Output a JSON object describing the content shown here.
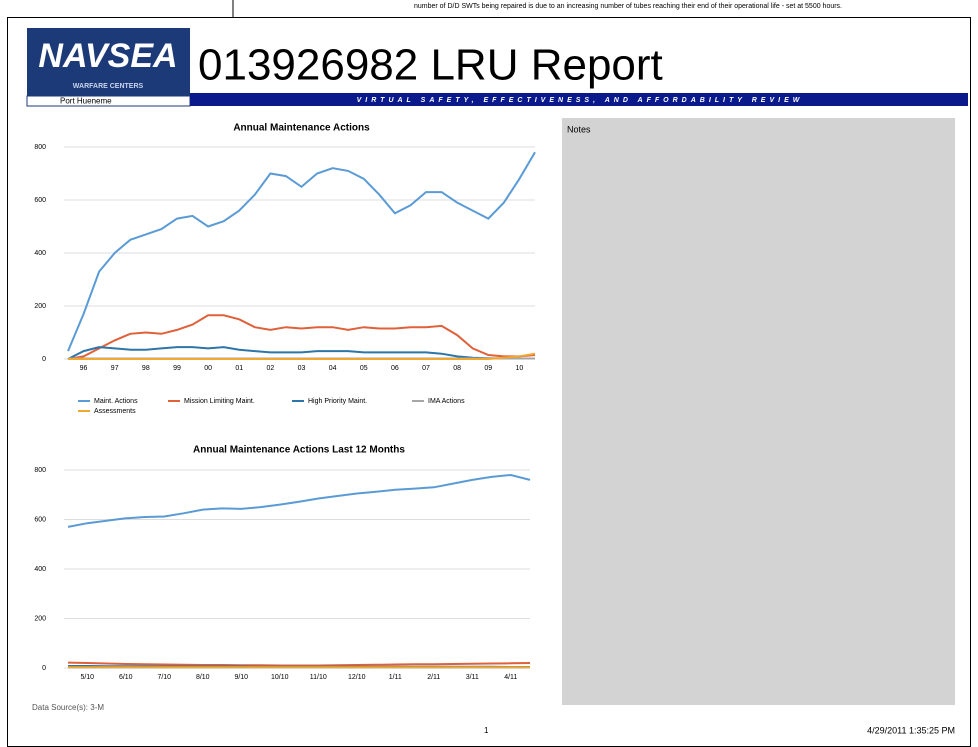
{
  "header": {
    "top_note": "number of D/D SWTs being repaired is due to an increasing number of tubes reaching their end of their operational life - set at 5500 hours.",
    "logo": "NAVSEA",
    "logo_sub": "WARFARE CENTERS",
    "location": "Port Hueneme",
    "title": "013926982 LRU Report",
    "banner": "VIRTUAL SAFETY, EFFECTIVENESS, AND AFFORDABILITY REVIEW"
  },
  "chart_data": [
    {
      "type": "line",
      "title": "Annual Maintenance Actions",
      "categories": [
        null,
        "96",
        null,
        "97",
        null,
        "98",
        null,
        "99",
        null,
        "00",
        null,
        "01",
        null,
        "02",
        null,
        "03",
        null,
        "04",
        null,
        "05",
        null,
        "06",
        null,
        "07",
        null,
        "08",
        null,
        "09",
        null,
        "10",
        null
      ],
      "series": [
        {
          "name": "Maint. Actions",
          "color": "#5b9bd5",
          "values": [
            30,
            170,
            330,
            400,
            450,
            470,
            490,
            530,
            540,
            500,
            520,
            560,
            620,
            700,
            690,
            650,
            700,
            720,
            710,
            680,
            620,
            550,
            580,
            630,
            630,
            590,
            560,
            530,
            590,
            680,
            780
          ]
        },
        {
          "name": "Mission Limiting Maint.",
          "color": "#e0603a",
          "values": [
            0,
            10,
            40,
            70,
            95,
            100,
            95,
            110,
            130,
            165,
            165,
            150,
            120,
            110,
            120,
            115,
            120,
            120,
            110,
            120,
            115,
            115,
            120,
            120,
            125,
            90,
            40,
            15,
            10,
            10,
            15
          ]
        },
        {
          "name": "High Priority Maint.",
          "color": "#2e75a8",
          "values": [
            0,
            30,
            45,
            40,
            35,
            35,
            40,
            45,
            45,
            40,
            45,
            35,
            30,
            25,
            25,
            25,
            30,
            30,
            30,
            25,
            25,
            25,
            25,
            25,
            20,
            10,
            5,
            3,
            2,
            2,
            2
          ]
        },
        {
          "name": "IMA Actions",
          "color": "#a6a6a6",
          "values": [
            2,
            2,
            2,
            2,
            2,
            2,
            2,
            2,
            2,
            2,
            2,
            2,
            2,
            2,
            2,
            2,
            2,
            2,
            2,
            2,
            2,
            2,
            2,
            2,
            2,
            2,
            2,
            2,
            2,
            2,
            2
          ]
        },
        {
          "name": "Assessments",
          "color": "#f0a830",
          "values": [
            0,
            0,
            0,
            0,
            0,
            0,
            0,
            0,
            0,
            0,
            0,
            0,
            0,
            0,
            0,
            0,
            0,
            0,
            0,
            0,
            0,
            0,
            0,
            0,
            0,
            0,
            0,
            0,
            5,
            10,
            20
          ]
        }
      ],
      "ylim": [
        0,
        800
      ],
      "yticks": [
        0,
        200,
        400,
        600,
        800
      ],
      "grid": true,
      "legend": "bottom"
    },
    {
      "type": "line",
      "title": "Annual Maintenance Actions Last 12 Months",
      "categories": [
        null,
        "5/10",
        null,
        "6/10",
        null,
        "7/10",
        null,
        "8/10",
        null,
        "9/10",
        null,
        "10/10",
        null,
        "11/10",
        null,
        "12/10",
        null,
        "1/11",
        null,
        "2/11",
        null,
        "3/11",
        null,
        "4/11",
        null
      ],
      "series": [
        {
          "color": "#5b9bd5",
          "values": [
            570,
            585,
            595,
            605,
            610,
            612,
            625,
            640,
            645,
            643,
            650,
            660,
            672,
            685,
            695,
            705,
            712,
            720,
            725,
            730,
            745,
            760,
            772,
            780,
            760
          ]
        },
        {
          "color": "#e0603a",
          "values": [
            22,
            20,
            18,
            16,
            15,
            14,
            13,
            12,
            12,
            11,
            11,
            10,
            10,
            10,
            11,
            12,
            13,
            14,
            15,
            15,
            16,
            17,
            18,
            19,
            20
          ]
        },
        {
          "color": "#2e75a8",
          "values": [
            8,
            8,
            7,
            7,
            7,
            6,
            6,
            6,
            6,
            6,
            5,
            5,
            5,
            5,
            5,
            5,
            5,
            5,
            5,
            5,
            5,
            5,
            5,
            4,
            4
          ]
        },
        {
          "color": "#a6a6a6",
          "values": [
            2,
            2,
            2,
            2,
            2,
            2,
            2,
            2,
            2,
            2,
            2,
            2,
            2,
            2,
            2,
            2,
            2,
            2,
            2,
            2,
            2,
            2,
            2,
            2,
            2
          ]
        },
        {
          "color": "#f0a830",
          "values": [
            3,
            3,
            3,
            3,
            3,
            3,
            3,
            3,
            3,
            3,
            3,
            3,
            3,
            3,
            3,
            3,
            3,
            3,
            3,
            3,
            3,
            3,
            3,
            3,
            3
          ]
        }
      ],
      "ylim": [
        0,
        800
      ],
      "yticks": [
        0,
        200,
        400,
        600,
        800
      ],
      "grid": true
    }
  ],
  "notes": {
    "title": "Notes"
  },
  "footer": {
    "source": "Data Source(s): 3-M",
    "page": "1",
    "timestamp": "4/29/2011 1:35:25 PM"
  }
}
